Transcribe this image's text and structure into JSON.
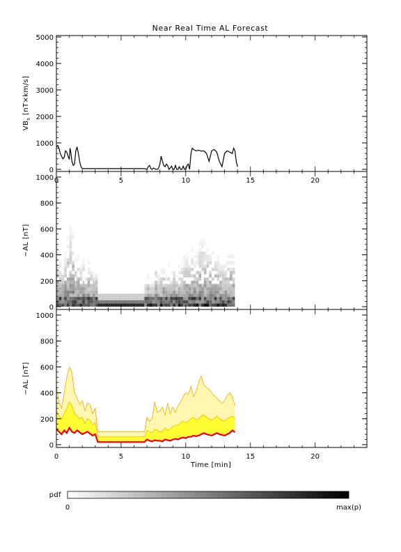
{
  "title": "Near Real Time AL Forecast",
  "colors": {
    "vbs_line": "#000000",
    "median_line": "#ee0000",
    "band_fill": "#ffff33",
    "band_edge": "#f2a500",
    "axis": "#000000"
  },
  "chart_data": [
    {
      "id": "vbs",
      "type": "line",
      "ylabel": "VBs [nT×km/s]",
      "ylabel_main": "VB",
      "ylabel_sub": "s",
      "ylabel_rest": " [nT×km/s]",
      "xlim": [
        0,
        24
      ],
      "ylim": [
        0,
        5000
      ],
      "yticks": [
        "0",
        "1000",
        "2000",
        "3000",
        "4000",
        "5000"
      ],
      "xticks": [
        "0",
        "5",
        "10",
        "15",
        "20"
      ],
      "series": [
        {
          "x": [
            0.0,
            0.1,
            0.2,
            0.3,
            0.4,
            0.5,
            0.6,
            0.7,
            0.8,
            0.9,
            1.0,
            1.05,
            1.1,
            1.15,
            1.2,
            1.3,
            1.4,
            1.5,
            1.6,
            1.7,
            1.8,
            1.9,
            2.0,
            2.5,
            3.0,
            3.5,
            4.0,
            4.5,
            5.0,
            5.5,
            6.0,
            6.5,
            6.8,
            7.0,
            7.1,
            7.2,
            7.3,
            7.4,
            7.5,
            7.6,
            7.7,
            7.8,
            7.9,
            8.0,
            8.1,
            8.2,
            8.3,
            8.4,
            8.5,
            8.6,
            8.7,
            8.8,
            8.9,
            9.0,
            9.1,
            9.2,
            9.3,
            9.4,
            9.5,
            9.6,
            9.7,
            9.8,
            9.9,
            10.0,
            10.1,
            10.2,
            10.3,
            10.4,
            10.5,
            10.6,
            10.8,
            11.0,
            11.2,
            11.4,
            11.6,
            11.8,
            12.0,
            12.2,
            12.4,
            12.6,
            12.8,
            13.0,
            13.2,
            13.4,
            13.6,
            13.7,
            13.8,
            13.9,
            14.0
          ],
          "values": [
            850,
            900,
            800,
            600,
            500,
            400,
            450,
            700,
            650,
            500,
            380,
            800,
            700,
            500,
            300,
            150,
            200,
            700,
            850,
            600,
            300,
            100,
            30,
            30,
            30,
            30,
            30,
            30,
            30,
            30,
            30,
            30,
            30,
            0,
            100,
            150,
            30,
            0,
            50,
            30,
            0,
            0,
            50,
            200,
            500,
            300,
            150,
            100,
            200,
            150,
            0,
            50,
            120,
            0,
            0,
            150,
            0,
            0,
            100,
            0,
            0,
            120,
            0,
            0,
            150,
            200,
            0,
            600,
            800,
            750,
            700,
            720,
            690,
            700,
            600,
            300,
            700,
            750,
            650,
            300,
            100,
            600,
            700,
            650,
            600,
            800,
            700,
            300,
            100
          ]
        }
      ]
    },
    {
      "id": "al_pdf",
      "type": "heatmap",
      "ylabel": "−AL [nT]",
      "xlim": [
        0,
        24
      ],
      "ylim": [
        0,
        1000
      ],
      "yticks": [
        "0",
        "200",
        "400",
        "600",
        "800",
        "1000"
      ],
      "xticks": [],
      "x": [
        0.0,
        0.2,
        0.4,
        0.6,
        0.8,
        1.0,
        1.2,
        1.4,
        1.6,
        1.8,
        2.0,
        2.2,
        2.4,
        2.6,
        2.8,
        3.0,
        6.8,
        7.0,
        7.2,
        7.4,
        7.6,
        7.8,
        8.0,
        8.2,
        8.4,
        8.6,
        8.8,
        9.0,
        9.2,
        9.4,
        9.6,
        9.8,
        10.0,
        10.2,
        10.4,
        10.6,
        10.8,
        11.0,
        11.2,
        11.4,
        11.6,
        11.8,
        12.0,
        12.2,
        12.4,
        12.6,
        12.8,
        13.0,
        13.2,
        13.4,
        13.6
      ],
      "max_al": [
        470,
        360,
        300,
        420,
        550,
        610,
        580,
        420,
        380,
        330,
        360,
        280,
        340,
        330,
        260,
        300,
        200,
        230,
        180,
        200,
        340,
        260,
        280,
        300,
        240,
        330,
        260,
        300,
        260,
        320,
        340,
        380,
        420,
        400,
        460,
        380,
        420,
        500,
        540,
        480,
        460,
        450,
        420,
        400,
        380,
        360,
        340,
        360,
        400,
        420,
        380
      ],
      "band_top": [
        100,
        100
      ],
      "band_range": [
        3.2,
        6.8
      ],
      "colorbar": {
        "label": "pdf",
        "min_label": "0",
        "max_label": "max(p)"
      }
    },
    {
      "id": "al_forecast",
      "type": "line",
      "ylabel": "−AL [nT]",
      "xlabel": "Time [min]",
      "xlim": [
        0,
        24
      ],
      "ylim": [
        0,
        1000
      ],
      "yticks": [
        "0",
        "200",
        "400",
        "600",
        "800",
        "1000"
      ],
      "xticks": [
        "0",
        "5",
        "10",
        "15",
        "20"
      ],
      "x": [
        0.0,
        0.2,
        0.4,
        0.6,
        0.8,
        1.0,
        1.2,
        1.4,
        1.6,
        1.8,
        2.0,
        2.2,
        2.4,
        2.6,
        2.8,
        3.0,
        3.2,
        4.0,
        5.0,
        6.0,
        6.8,
        7.0,
        7.2,
        7.4,
        7.6,
        7.8,
        8.0,
        8.2,
        8.4,
        8.6,
        8.8,
        9.0,
        9.2,
        9.4,
        9.6,
        9.8,
        10.0,
        10.2,
        10.4,
        10.6,
        10.8,
        11.0,
        11.2,
        11.4,
        11.6,
        11.8,
        12.0,
        12.2,
        12.4,
        12.6,
        12.8,
        13.0,
        13.2,
        13.4,
        13.6,
        13.8
      ],
      "series": [
        {
          "name": "",
          "values": [
            120,
            100,
            80,
            110,
            90,
            130,
            100,
            90,
            110,
            95,
            80,
            90,
            100,
            85,
            70,
            80,
            20,
            20,
            20,
            20,
            20,
            40,
            30,
            25,
            35,
            30,
            30,
            25,
            40,
            35,
            30,
            40,
            45,
            40,
            50,
            55,
            50,
            60,
            60,
            70,
            65,
            70,
            80,
            90,
            80,
            75,
            70,
            80,
            90,
            80,
            75,
            70,
            80,
            90,
            110,
            95
          ]
        },
        {
          "name": "",
          "values": [
            260,
            220,
            200,
            240,
            280,
            330,
            300,
            240,
            220,
            200,
            210,
            160,
            200,
            190,
            150,
            170,
            60,
            60,
            60,
            60,
            60,
            110,
            100,
            90,
            120,
            110,
            100,
            100,
            130,
            110,
            120,
            140,
            150,
            150,
            170,
            180,
            170,
            180,
            200,
            210,
            190,
            200,
            220,
            230,
            210,
            200,
            190,
            200,
            220,
            200,
            190,
            180,
            200,
            210,
            220,
            200
          ]
        },
        {
          "name": "",
          "values": [
            450,
            330,
            280,
            400,
            520,
            600,
            560,
            400,
            360,
            310,
            340,
            260,
            320,
            310,
            240,
            280,
            100,
            100,
            100,
            100,
            100,
            210,
            180,
            200,
            330,
            250,
            260,
            290,
            230,
            320,
            240,
            290,
            250,
            300,
            330,
            370,
            400,
            390,
            450,
            370,
            410,
            480,
            530,
            460,
            440,
            430,
            400,
            380,
            360,
            340,
            320,
            340,
            380,
            400,
            370,
            300
          ]
        }
      ]
    }
  ]
}
